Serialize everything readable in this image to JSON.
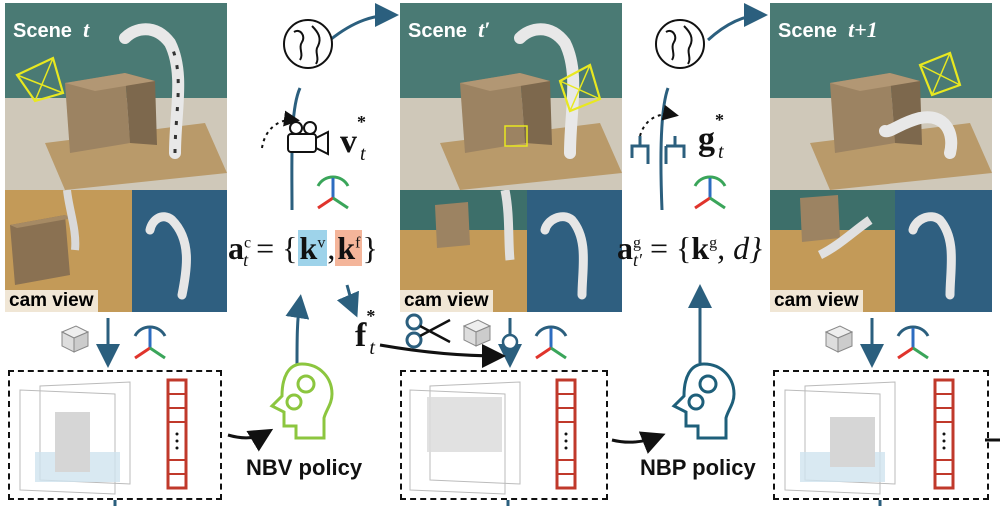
{
  "scenes": [
    {
      "label": "Scene",
      "time": "t",
      "cam_label": "cam view"
    },
    {
      "label": "Scene",
      "time": "t′",
      "cam_label": "cam view"
    },
    {
      "label": "Scene",
      "time": "t+1",
      "cam_label": "cam view"
    }
  ],
  "policies": {
    "nbv_label": "NBV policy",
    "nbp_label": "NBP policy"
  },
  "math": {
    "v_sym": "v",
    "v_sup": "*",
    "v_sub": "t",
    "f_sym": "f",
    "f_sup": "*",
    "f_sub": "t",
    "g_sym": "g",
    "g_sup": "*",
    "g_sub": "t",
    "ac_sym": "a",
    "ac_sup": "c",
    "ac_sub": "t",
    "ac_eq": "= {",
    "kv_sym": "k",
    "kv_sup": "v",
    "comma": ",",
    "kf_sym": "k",
    "kf_sup": "f",
    "close": "}",
    "ag_sym": "a",
    "ag_sup": "g",
    "ag_sub": "t′",
    "ag_eq": "= {",
    "kg_sym": "k",
    "kg_sup": "g",
    "ag_rest": ", d}"
  },
  "colors": {
    "arrow": "#2b5f7e",
    "nbv_head": "#8cc63f",
    "nbp_head": "#1e5f7a",
    "kv_highlight": "#9ed3ea",
    "kf_highlight": "#f4b59a",
    "token_red": "#c0392b",
    "frustum": "#e8e820"
  },
  "icons": [
    "globe-icon",
    "camera-icon",
    "gripper-icon",
    "scissors-icon",
    "voxel-cube-icon",
    "rotation-axes-icon",
    "head-gears-icon"
  ]
}
